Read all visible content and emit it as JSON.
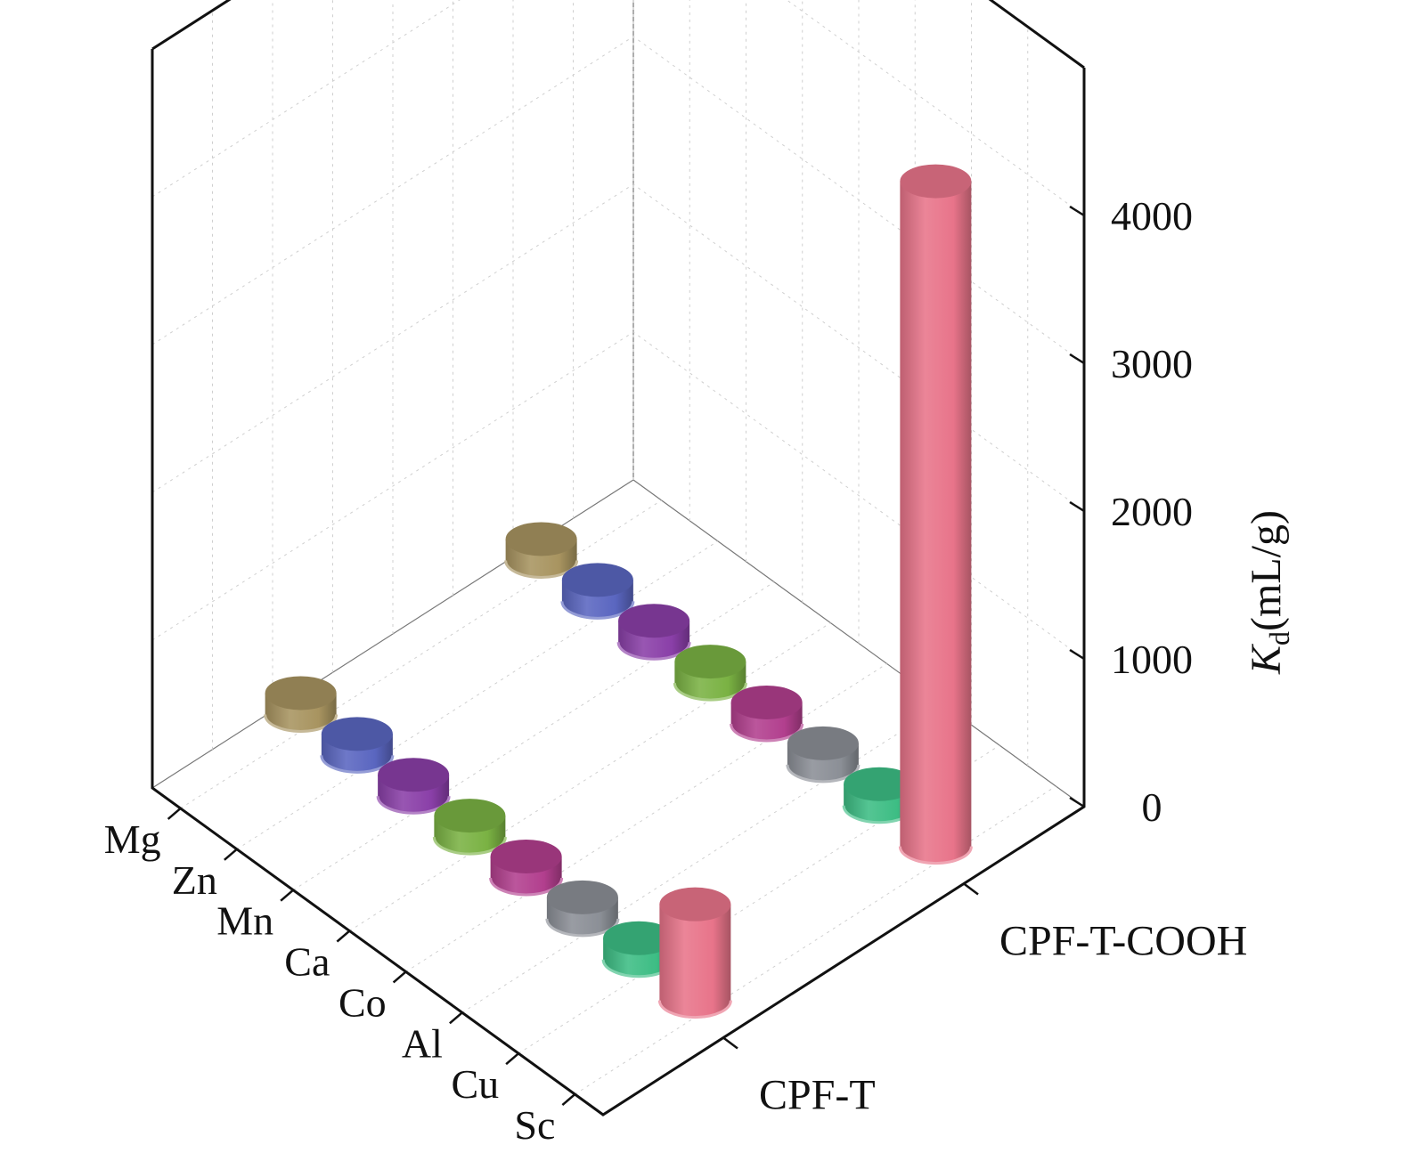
{
  "chart_data": {
    "type": "bar",
    "title": "",
    "categories": [
      "Sc",
      "Cu",
      "Al",
      "Co",
      "Ca",
      "Mn",
      "Zn",
      "Mg"
    ],
    "series": [
      {
        "name": "CPF-T",
        "values": [
          650,
          40,
          40,
          40,
          40,
          40,
          40,
          40
        ]
      },
      {
        "name": "CPF-T-COOH",
        "values": [
          4500,
          40,
          40,
          40,
          40,
          40,
          40,
          40
        ]
      }
    ],
    "zlabel_main": "K",
    "zlabel_sub": "d",
    "zlabel_unit": "(mL/g)",
    "zticks": [
      0,
      1000,
      2000,
      3000,
      4000
    ],
    "zlim": [
      0,
      5000
    ],
    "grid": true,
    "colors": {
      "Sc": "#e8748a",
      "Cu": "#3dbd84",
      "Al": "#8b8f96",
      "Co": "#b23f8e",
      "Ca": "#7ab243",
      "Mn": "#8a3fa8",
      "Zn": "#5a66c0",
      "Mg": "#a89460"
    }
  }
}
